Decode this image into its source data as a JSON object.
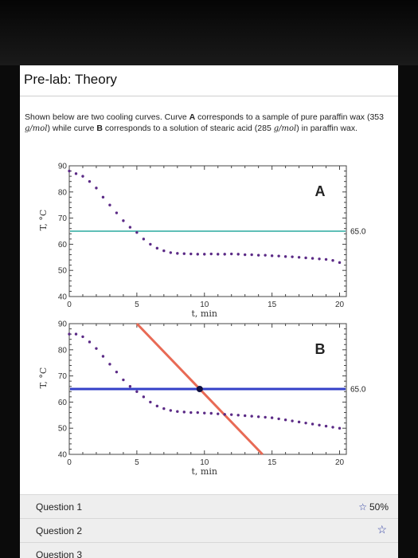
{
  "page": {
    "title": "Pre-lab: Theory",
    "desc": {
      "t1": "Shown below are two cooling curves. Curve ",
      "A": "A",
      "t2": " corresponds to a sample of pure paraffin wax (353 ",
      "unit1": "g/mol",
      "t3": ") while curve ",
      "B": "B",
      "t4": " corresponds to a solution of stearic acid (285 ",
      "unit2": "g/mol",
      "t5": ") in paraffin wax."
    }
  },
  "colors": {
    "dots": "#5b2a86",
    "lineA": "#5fbfb7",
    "lineB": "#3340c8",
    "redline": "#e86a55"
  },
  "chart_data": [
    {
      "type": "scatter",
      "curve_label": "A",
      "xlabel": "t, min",
      "ylabel": "T, °C",
      "xlim": [
        0,
        20.5
      ],
      "ylim": [
        40,
        90
      ],
      "xticks": [
        "0",
        "5",
        "10",
        "15",
        "20"
      ],
      "yticks": [
        "40",
        "50",
        "60",
        "70",
        "80",
        "90"
      ],
      "hline": {
        "y": 65.0,
        "label": "65.0"
      },
      "x": [
        0.0,
        0.5,
        1.0,
        1.5,
        2.0,
        2.5,
        3.0,
        3.5,
        4.0,
        4.5,
        5.0,
        5.5,
        6.0,
        6.5,
        7.0,
        7.5,
        8.0,
        8.5,
        9.0,
        9.5,
        10.0,
        10.5,
        11.0,
        11.5,
        12.0,
        12.5,
        13.0,
        13.5,
        14.0,
        14.5,
        15.0,
        15.5,
        16.0,
        16.5,
        17.0,
        17.5,
        18.0,
        18.5,
        19.0,
        19.5,
        20.0
      ],
      "y": [
        88,
        87,
        86,
        84,
        81.5,
        78,
        75,
        72,
        69,
        66.5,
        64.5,
        62,
        60,
        58.5,
        57.5,
        56.8,
        56.5,
        56.4,
        56.3,
        56.2,
        56.2,
        56.3,
        56.2,
        56.2,
        56.3,
        56.2,
        56.0,
        56.0,
        55.8,
        55.8,
        55.6,
        55.5,
        55.3,
        55.2,
        55.0,
        54.8,
        54.6,
        54.4,
        54.2,
        53.8,
        53.0
      ]
    },
    {
      "type": "scatter",
      "curve_label": "B",
      "xlabel": "t, min",
      "ylabel": "T, °C",
      "xlim": [
        0,
        20.5
      ],
      "ylim": [
        40,
        90
      ],
      "xticks": [
        "0",
        "5",
        "10",
        "15",
        "20"
      ],
      "yticks": [
        "40",
        "50",
        "60",
        "70",
        "80",
        "90"
      ],
      "hline": {
        "y": 65.0,
        "label": "65.0"
      },
      "x": [
        0.0,
        0.5,
        1.0,
        1.5,
        2.0,
        2.5,
        3.0,
        3.5,
        4.0,
        4.5,
        5.0,
        5.5,
        6.0,
        6.5,
        7.0,
        7.5,
        8.0,
        8.5,
        9.0,
        9.5,
        10.0,
        10.5,
        11.0,
        11.5,
        12.0,
        12.5,
        13.0,
        13.5,
        14.0,
        14.5,
        15.0,
        15.5,
        16.0,
        16.5,
        17.0,
        17.5,
        18.0,
        18.5,
        19.0,
        19.5,
        20.0
      ],
      "y": [
        86,
        86,
        85,
        83,
        80.5,
        77.5,
        74.5,
        71.5,
        68.5,
        66,
        64,
        62,
        60,
        58.5,
        57.5,
        56.8,
        56.4,
        56.2,
        56.0,
        56.0,
        55.8,
        55.7,
        55.5,
        55.3,
        55.2,
        55.0,
        54.8,
        54.6,
        54.4,
        54.2,
        54.0,
        53.6,
        53.2,
        52.8,
        52.4,
        52.0,
        51.6,
        51.2,
        50.8,
        50.4,
        50.0
      ]
    }
  ],
  "questions": [
    {
      "label": "Question 1",
      "score": "50%"
    },
    {
      "label": "Question 2"
    },
    {
      "label": "Question 3"
    }
  ]
}
